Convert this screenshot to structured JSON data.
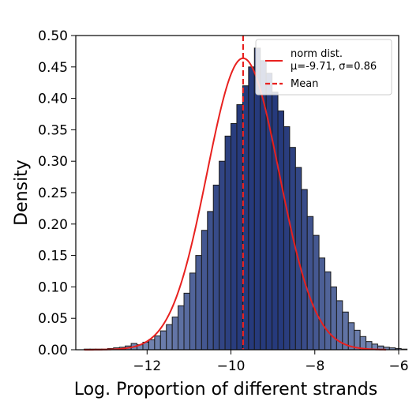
{
  "chart_data": {
    "type": "bar",
    "subtype": "histogram_with_density_fit",
    "xlabel": "Log. Proportion of different strands",
    "ylabel": "Density",
    "xlim": [
      -13.7,
      -6.0
    ],
    "ylim": [
      0,
      0.5
    ],
    "xticks": [
      -12,
      -10,
      -8,
      -6
    ],
    "xtick_labels": [
      "−12",
      "−10",
      "−8",
      "−6"
    ],
    "yticks": [
      0,
      0.05,
      0.1,
      0.15,
      0.2,
      0.25,
      0.3,
      0.35,
      0.4,
      0.45,
      0.5
    ],
    "ytick_labels": [
      "0.00",
      "0.05",
      "0.10",
      "0.15",
      "0.20",
      "0.25",
      "0.30",
      "0.35",
      "0.40",
      "0.45",
      "0.50"
    ],
    "grid": false,
    "legend_position": "top-right",
    "histogram": {
      "bin_start": -13.5,
      "bin_width": 0.14,
      "values": [
        0.001,
        0.001,
        0.001,
        0.001,
        0.002,
        0.003,
        0.004,
        0.006,
        0.01,
        0.008,
        0.012,
        0.016,
        0.022,
        0.03,
        0.04,
        0.052,
        0.07,
        0.09,
        0.122,
        0.15,
        0.19,
        0.22,
        0.262,
        0.3,
        0.34,
        0.36,
        0.39,
        0.42,
        0.45,
        0.48,
        0.46,
        0.44,
        0.41,
        0.38,
        0.355,
        0.322,
        0.29,
        0.255,
        0.212,
        0.182,
        0.146,
        0.124,
        0.1,
        0.078,
        0.06,
        0.043,
        0.031,
        0.021,
        0.013,
        0.009,
        0.006,
        0.004,
        0.003,
        0.002,
        0.001
      ],
      "color_low_density": "#7d8fb8",
      "color_high_density": "#263a7c",
      "edge_color": "#1a1a1a"
    },
    "series": [
      {
        "name": "norm dist.\nμ=-9.71, σ=0.86",
        "type": "line",
        "mu": -9.71,
        "sigma": 0.86,
        "color": "#e8211f"
      },
      {
        "name": "Mean",
        "type": "vline",
        "x": -9.71,
        "style": "dashed",
        "color": "#e8211f"
      }
    ]
  },
  "legend": {
    "line1": "norm dist.",
    "line2": "μ=-9.71, σ=0.86",
    "mean": "Mean"
  }
}
